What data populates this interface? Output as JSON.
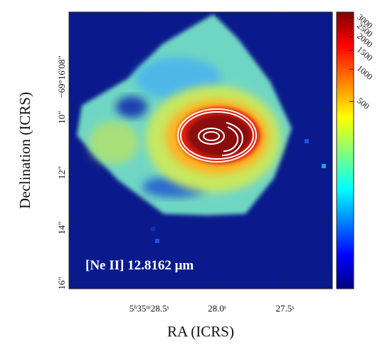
{
  "chart_data": {
    "type": "image",
    "xlabel": "RA (ICRS)",
    "ylabel": "Declination (ICRS)",
    "annotation": "[Ne II] 12.8162 μm",
    "xlim": [
      29.09,
      27.15
    ],
    "xticks": [
      {
        "value": 28.5,
        "label": "5ʰ35ᵐ28.5ˢ"
      },
      {
        "value": 28.0,
        "label": "28.0ˢ"
      },
      {
        "value": 27.5,
        "label": "27.5ˢ"
      }
    ],
    "ylim": [
      6.43,
      16.44
    ],
    "yticks": [
      {
        "value": 8,
        "label": "−69°16′08″"
      },
      {
        "value": 10,
        "label": "10″"
      },
      {
        "value": 12,
        "label": "12″"
      },
      {
        "value": 14,
        "label": "14″"
      },
      {
        "value": 16,
        "label": "16″"
      }
    ],
    "colorbar": {
      "lim": [
        9,
        3400
      ],
      "scale": "log",
      "colormap": "jet",
      "ticks": [
        500,
        1000,
        1500,
        2000,
        2500,
        3000
      ]
    }
  }
}
